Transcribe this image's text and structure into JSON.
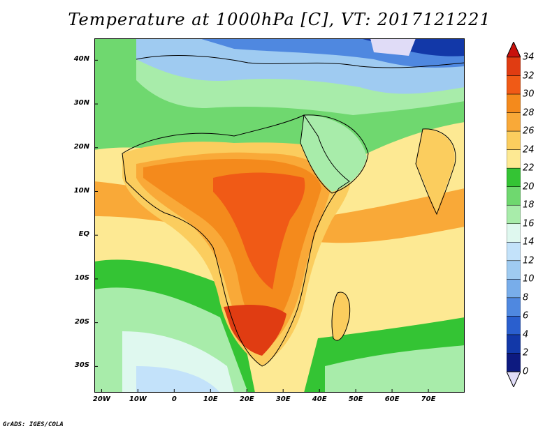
{
  "title": "Temperature at 1000hPa [C], VT: 2017121221",
  "credit": "GrADS: IGES/COLA",
  "map": {
    "lon_range": [
      -22,
      80
    ],
    "lat_range": [
      -36,
      45
    ],
    "y_axis_labels": [
      {
        "lat": 40,
        "label": "40N"
      },
      {
        "lat": 30,
        "label": "30N"
      },
      {
        "lat": 20,
        "label": "20N"
      },
      {
        "lat": 10,
        "label": "10N"
      },
      {
        "lat": 0,
        "label": "EQ"
      },
      {
        "lat": -10,
        "label": "10S"
      },
      {
        "lat": -20,
        "label": "20S"
      },
      {
        "lat": -30,
        "label": "30S"
      }
    ],
    "x_axis_labels": [
      {
        "lon": -20,
        "label": "20W"
      },
      {
        "lon": -10,
        "label": "10W"
      },
      {
        "lon": 0,
        "label": "0"
      },
      {
        "lon": 10,
        "label": "10E"
      },
      {
        "lon": 20,
        "label": "20E"
      },
      {
        "lon": 30,
        "label": "30E"
      },
      {
        "lon": 40,
        "label": "40E"
      },
      {
        "lon": 50,
        "label": "50E"
      },
      {
        "lon": 60,
        "label": "60E"
      },
      {
        "lon": 70,
        "label": "70E"
      }
    ]
  },
  "colorbar": {
    "levels": [
      "34",
      "32",
      "30",
      "28",
      "26",
      "24",
      "22",
      "20",
      "18",
      "16",
      "14",
      "12",
      "10",
      "8",
      "6",
      "4",
      "2",
      "0"
    ],
    "colors": [
      "#e03c12",
      "#f05a16",
      "#f48a1c",
      "#f9a938",
      "#fbcd5e",
      "#fde993",
      "#34c434",
      "#6fd86f",
      "#a8ecaa",
      "#dff8ef",
      "#c3e2fa",
      "#9fcbf1",
      "#78adea",
      "#4f88e0",
      "#2a5fce",
      "#1238a8",
      "#0d1a80"
    ],
    "over_color": "#c8110c",
    "under_color": "#e0dcf7"
  }
}
